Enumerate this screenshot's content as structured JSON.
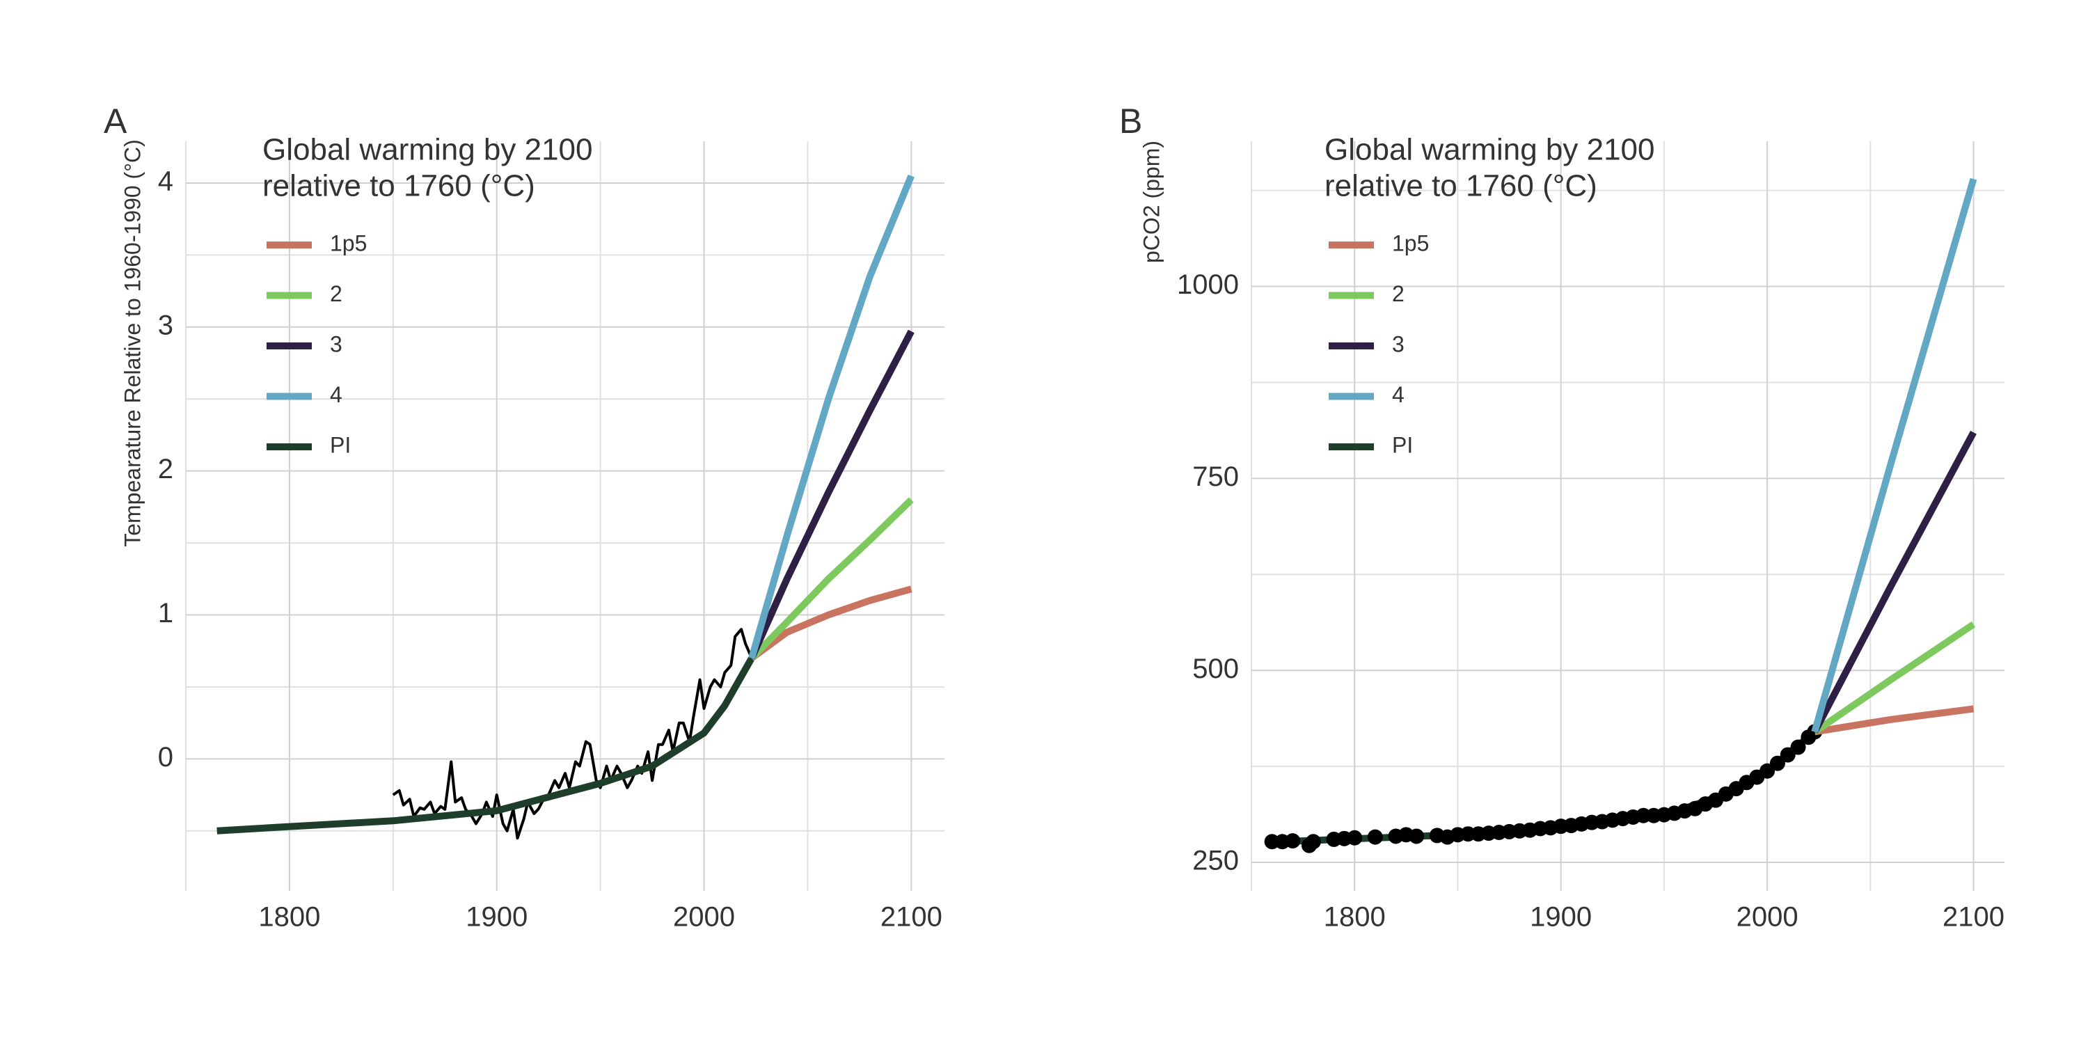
{
  "chart_data": [
    {
      "type": "line",
      "panel_label": "A",
      "y_label": "Tempearature Relative to 1960-1990 (°C)",
      "legend_title": [
        "Global warming by 2100",
        "relative to 1760 (°C)"
      ],
      "xlim": [
        1750,
        2116
      ],
      "xticks": [
        1800,
        1900,
        2000,
        2100
      ],
      "xminor": [
        1750,
        1850,
        1950,
        2050
      ],
      "ylim": [
        -0.82,
        4.29
      ],
      "yticks": [
        0,
        1,
        2,
        3,
        4
      ],
      "yminor": [
        -0.5,
        0.5,
        1.5,
        2.5,
        3.5
      ],
      "grid": true,
      "series": [
        {
          "color": "#000000",
          "marker": "line",
          "width": 4,
          "x": [
            1850,
            1853,
            1855,
            1858,
            1860,
            1863,
            1865,
            1868,
            1870,
            1873,
            1875,
            1878,
            1880,
            1883,
            1885,
            1888,
            1890,
            1893,
            1895,
            1898,
            1900,
            1903,
            1905,
            1908,
            1910,
            1913,
            1915,
            1918,
            1920,
            1923,
            1925,
            1928,
            1930,
            1933,
            1935,
            1938,
            1940,
            1943,
            1945,
            1948,
            1950,
            1953,
            1955,
            1958,
            1960,
            1963,
            1965,
            1968,
            1970,
            1973,
            1975,
            1978,
            1980,
            1983,
            1985,
            1988,
            1990,
            1993,
            1995,
            1998,
            2000,
            2003,
            2005,
            2008,
            2010,
            2013,
            2015,
            2018,
            2020,
            2023
          ],
          "values": [
            -0.25,
            -0.22,
            -0.32,
            -0.28,
            -0.4,
            -0.34,
            -0.35,
            -0.3,
            -0.38,
            -0.33,
            -0.35,
            -0.02,
            -0.3,
            -0.27,
            -0.35,
            -0.4,
            -0.45,
            -0.38,
            -0.3,
            -0.4,
            -0.25,
            -0.45,
            -0.5,
            -0.35,
            -0.55,
            -0.42,
            -0.3,
            -0.38,
            -0.35,
            -0.27,
            -0.25,
            -0.15,
            -0.2,
            -0.1,
            -0.2,
            -0.02,
            -0.05,
            0.12,
            0.1,
            -0.15,
            -0.2,
            -0.05,
            -0.15,
            -0.05,
            -0.1,
            -0.2,
            -0.15,
            -0.05,
            -0.1,
            0.05,
            -0.15,
            0.1,
            0.1,
            0.2,
            0.05,
            0.25,
            0.25,
            0.12,
            0.3,
            0.55,
            0.35,
            0.5,
            0.55,
            0.5,
            0.6,
            0.65,
            0.85,
            0.9,
            0.8,
            0.7
          ]
        },
        {
          "name": "PI",
          "color": "#1e3d2b",
          "marker": "line",
          "width": 10,
          "x": [
            1765,
            1800,
            1850,
            1900,
            1950,
            1975,
            2000,
            2010,
            2023
          ],
          "values": [
            -0.5,
            -0.47,
            -0.43,
            -0.36,
            -0.17,
            -0.05,
            0.18,
            0.37,
            0.7
          ]
        },
        {
          "name": "1p5",
          "color": "#c87461",
          "marker": "line",
          "width": 10,
          "x": [
            2023,
            2040,
            2060,
            2080,
            2100
          ],
          "values": [
            0.7,
            0.88,
            1.0,
            1.1,
            1.18
          ]
        },
        {
          "name": "2",
          "color": "#7dc95e",
          "marker": "line",
          "width": 10,
          "x": [
            2023,
            2040,
            2060,
            2080,
            2100
          ],
          "values": [
            0.7,
            0.95,
            1.25,
            1.52,
            1.8
          ]
        },
        {
          "name": "3",
          "color": "#2e1f45",
          "marker": "line",
          "width": 10,
          "x": [
            2023,
            2040,
            2060,
            2080,
            2100
          ],
          "values": [
            0.7,
            1.25,
            1.85,
            2.42,
            2.97
          ]
        },
        {
          "name": "4",
          "color": "#62a8c4",
          "marker": "line",
          "width": 10,
          "x": [
            2023,
            2040,
            2060,
            2080,
            2100
          ],
          "values": [
            0.7,
            1.55,
            2.5,
            3.35,
            4.05
          ]
        }
      ]
    },
    {
      "type": "line",
      "panel_label": "B",
      "y_label": "pCO2 (ppm)",
      "legend_title": [
        "Global warming by 2100",
        "relative to 1760 (°C)"
      ],
      "xlim": [
        1750,
        2115
      ],
      "xticks": [
        1800,
        1900,
        2000,
        2100
      ],
      "xminor": [
        1750,
        1850,
        1950,
        2050
      ],
      "ylim": [
        231,
        1189
      ],
      "yticks": [
        250,
        500,
        750,
        1000
      ],
      "yminor": [
        375,
        625,
        875,
        1125
      ],
      "grid": true,
      "series": [
        {
          "name": "PI",
          "color": "#1e3d2b",
          "marker": "line",
          "width": 10,
          "x": [
            1765,
            1850,
            1900,
            1950,
            1980,
            2000,
            2023
          ],
          "values": [
            277,
            286,
            296,
            311,
            339,
            369,
            420
          ]
        },
        {
          "color": "#000000",
          "marker": "point",
          "x": [
            1760,
            1765,
            1770,
            1778,
            1780,
            1790,
            1795,
            1800,
            1810,
            1820,
            1825,
            1830,
            1840,
            1845,
            1850,
            1855,
            1860,
            1865,
            1870,
            1875,
            1880,
            1885,
            1890,
            1895,
            1900,
            1905,
            1910,
            1915,
            1920,
            1925,
            1930,
            1935,
            1940,
            1945,
            1950,
            1955,
            1960,
            1965,
            1970,
            1975,
            1980,
            1985,
            1990,
            1995,
            2000,
            2005,
            2010,
            2015,
            2020,
            2023
          ],
          "values": [
            277,
            277,
            278,
            272,
            277,
            280,
            281,
            282,
            283,
            284,
            286,
            284,
            285,
            283,
            286,
            287,
            287,
            288,
            289,
            290,
            291,
            292,
            294,
            295,
            297,
            298,
            300,
            302,
            303,
            305,
            307,
            309,
            311,
            311,
            312,
            314,
            317,
            320,
            326,
            331,
            339,
            346,
            354,
            361,
            369,
            379,
            390,
            400,
            413,
            420
          ]
        },
        {
          "name": "1p5",
          "color": "#c87461",
          "marker": "line",
          "width": 10,
          "x": [
            2023,
            2060,
            2100
          ],
          "values": [
            420,
            436,
            450
          ]
        },
        {
          "name": "2",
          "color": "#7dc95e",
          "marker": "line",
          "width": 10,
          "x": [
            2023,
            2060,
            2100
          ],
          "values": [
            420,
            488,
            560
          ]
        },
        {
          "name": "3",
          "color": "#2e1f45",
          "marker": "line",
          "width": 10,
          "x": [
            2023,
            2060,
            2100
          ],
          "values": [
            420,
            610,
            810
          ]
        },
        {
          "name": "4",
          "color": "#62a8c4",
          "marker": "line",
          "width": 10,
          "x": [
            2023,
            2060,
            2100
          ],
          "values": [
            420,
            770,
            1140
          ]
        }
      ]
    }
  ]
}
